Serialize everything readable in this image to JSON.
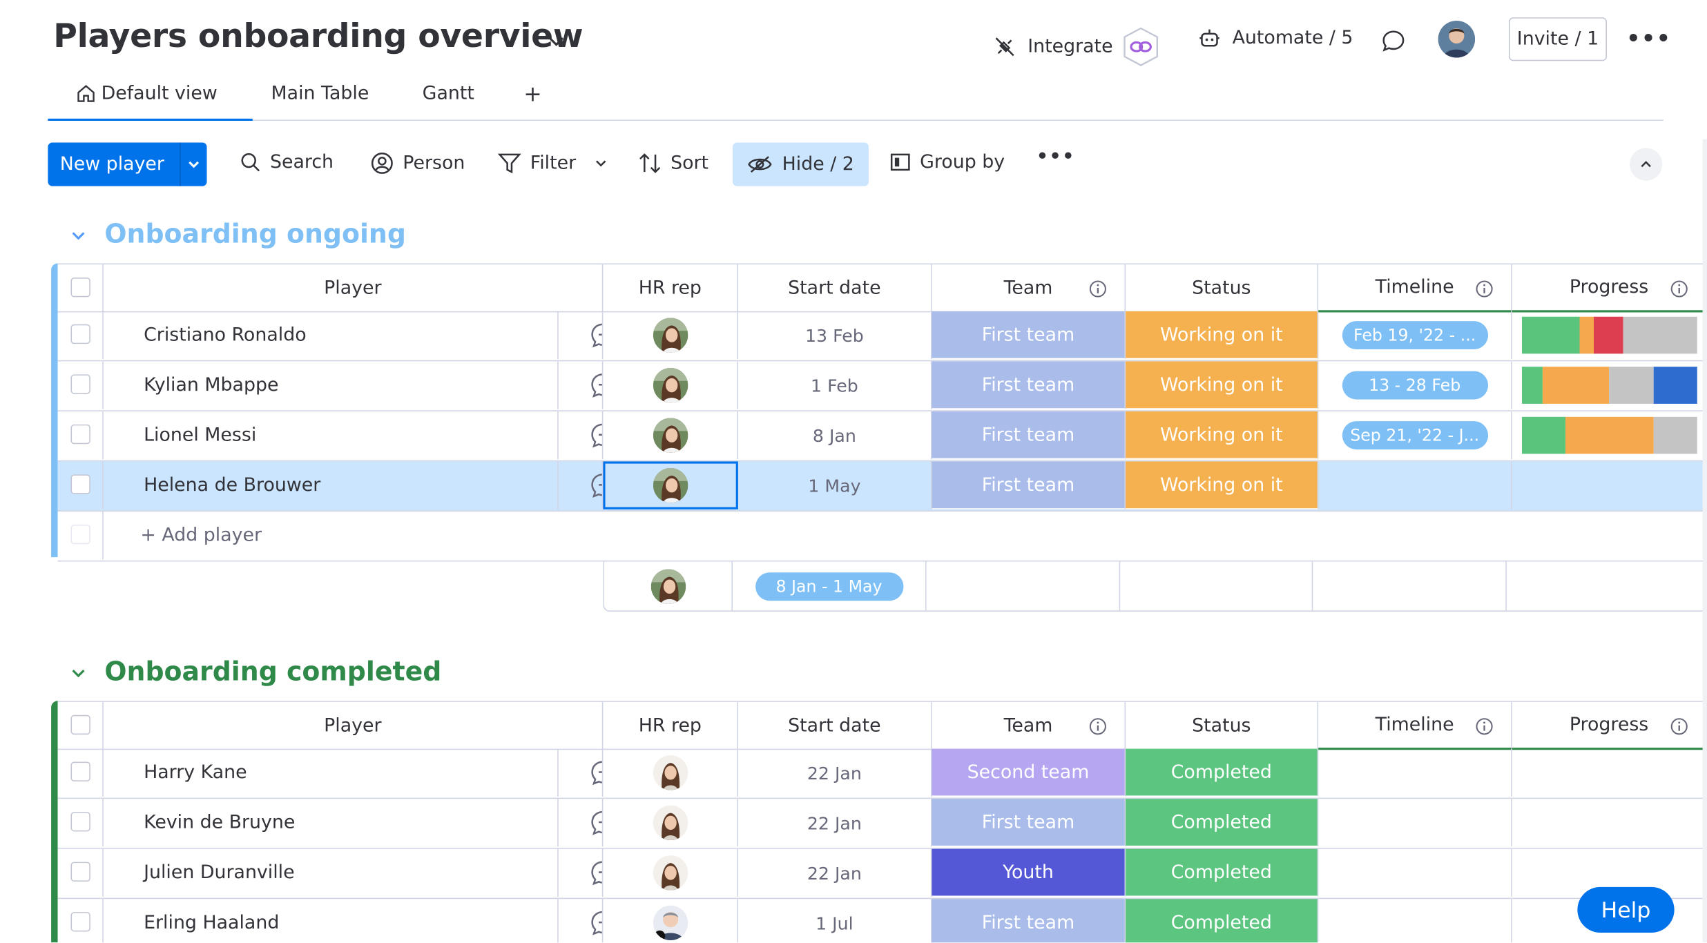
{
  "board": {
    "title": "Players onboarding overview"
  },
  "header": {
    "integrate_label": "Integrate",
    "automate_label": "Automate / 5",
    "invite_label": "Invite / 1"
  },
  "tabs": [
    {
      "label": "Default view"
    },
    {
      "label": "Main Table"
    },
    {
      "label": "Gantt"
    },
    {
      "label": "+"
    }
  ],
  "toolbar": {
    "new_label": "New player",
    "search_label": "Search",
    "person_label": "Person",
    "filter_label": "Filter",
    "sort_label": "Sort",
    "hide_label": "Hide / 2",
    "groupby_label": "Group by"
  },
  "columns": {
    "player": "Player",
    "hr": "HR rep",
    "start": "Start date",
    "team": "Team",
    "status": "Status",
    "timeline": "Timeline",
    "progress": "Progress"
  },
  "groups": [
    {
      "title": "Onboarding ongoing",
      "color": "#579bfc",
      "rows": [
        {
          "name": "Cristiano Ronaldo",
          "date": "13 Feb",
          "team": "First team",
          "status": "Working on it",
          "timeline": "Feb 19, '22 - ...",
          "progress": [
            {
              "frac": 0.33,
              "color": "#5ac47d"
            },
            {
              "frac": 0.08,
              "color": "#f5a94c"
            },
            {
              "frac": 0.17,
              "color": "#dd3e50"
            },
            {
              "frac": 0.42,
              "color": "#c4c4c4"
            }
          ]
        },
        {
          "name": "Kylian Mbappe",
          "date": "1 Feb",
          "team": "First team",
          "status": "Working on it",
          "timeline": "13 - 28 Feb",
          "progress": [
            {
              "frac": 0.12,
              "color": "#5ac47d"
            },
            {
              "frac": 0.38,
              "color": "#f5a94c"
            },
            {
              "frac": 0.25,
              "color": "#c4c4c4"
            },
            {
              "frac": 0.25,
              "color": "#2f6ccf"
            }
          ]
        },
        {
          "name": "Lionel Messi",
          "date": "8 Jan",
          "team": "First team",
          "status": "Working on it",
          "timeline": "Sep 21, '22 - J...",
          "progress": [
            {
              "frac": 0.25,
              "color": "#5ac47d"
            },
            {
              "frac": 0.5,
              "color": "#f5a94c"
            },
            {
              "frac": 0.25,
              "color": "#c4c4c4"
            }
          ]
        },
        {
          "name": "Helena de Brouwer",
          "date": "1 May",
          "team": "First team",
          "status": "Working on it",
          "timeline": "",
          "progress": []
        }
      ],
      "add_label": "+ Add player",
      "summary_range": "8 Jan - 1 May"
    },
    {
      "title": "Onboarding completed",
      "color": "#2f8a4a",
      "rows": [
        {
          "name": "Harry Kane",
          "date": "22 Jan",
          "team": "Second team",
          "status": "Completed"
        },
        {
          "name": "Kevin de Bruyne",
          "date": "22 Jan",
          "team": "First team",
          "status": "Completed"
        },
        {
          "name": "Julien Duranville",
          "date": "22 Jan",
          "team": "Youth",
          "status": "Completed"
        },
        {
          "name": "Erling Haaland",
          "date": "1 Jul",
          "team": "First team",
          "status": "Completed"
        }
      ]
    }
  ],
  "colors": {
    "first_team": "#a9bcea",
    "second_team": "#b6a6f2",
    "youth": "#5458d6",
    "working": "#f5b04f",
    "completed": "#5cc57f",
    "primary": "#0073ea"
  },
  "help_label": "Help"
}
